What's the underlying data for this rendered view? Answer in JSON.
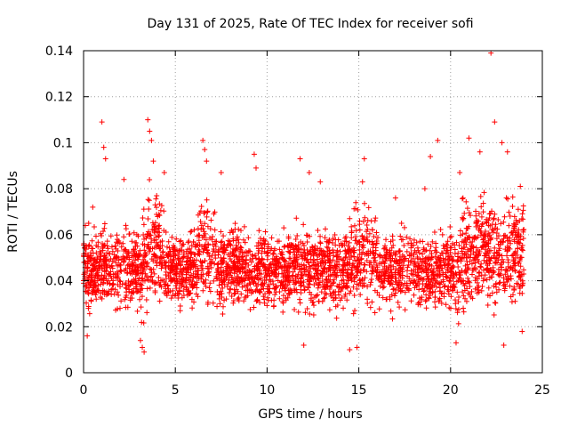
{
  "chart_data": {
    "type": "scatter",
    "title": "Day 131 of 2025, Rate Of TEC Index for receiver sofi",
    "xlabel": "GPS time / hours",
    "ylabel": "ROTI / TECUs",
    "xlim": [
      0,
      25
    ],
    "ylim": [
      0,
      0.14
    ],
    "x_ticks": [
      0,
      5,
      10,
      15,
      20,
      25
    ],
    "x_tick_labels": [
      "0",
      "5",
      "10",
      "15",
      "20",
      "25"
    ],
    "y_ticks": [
      0,
      0.02,
      0.04,
      0.06,
      0.08,
      0.1,
      0.12,
      0.14
    ],
    "y_tick_labels": [
      "0",
      "0.02",
      "0.04",
      "0.06",
      "0.08",
      "0.1",
      "0.12",
      "0.14"
    ],
    "grid": true,
    "marker": "plus",
    "color": "#ff0000",
    "series": [
      {
        "name": "ROTI",
        "summary": {
          "x_range": [
            0,
            24
          ],
          "typical_range": [
            0.02,
            0.065
          ],
          "median": 0.042,
          "max": 0.139
        },
        "points": [
          [
            0.1,
            0.064
          ],
          [
            0.5,
            0.072
          ],
          [
            1.0,
            0.109
          ],
          [
            1.1,
            0.098
          ],
          [
            1.2,
            0.093
          ],
          [
            2.2,
            0.084
          ],
          [
            3.5,
            0.11
          ],
          [
            3.6,
            0.105
          ],
          [
            3.7,
            0.101
          ],
          [
            3.8,
            0.092
          ],
          [
            4.4,
            0.087
          ],
          [
            6.5,
            0.101
          ],
          [
            6.6,
            0.097
          ],
          [
            6.7,
            0.092
          ],
          [
            7.5,
            0.087
          ],
          [
            9.3,
            0.095
          ],
          [
            9.4,
            0.089
          ],
          [
            11.8,
            0.093
          ],
          [
            12.3,
            0.087
          ],
          [
            12.9,
            0.083
          ],
          [
            15.3,
            0.093
          ],
          [
            15.2,
            0.083
          ],
          [
            17.0,
            0.076
          ],
          [
            18.6,
            0.08
          ],
          [
            18.9,
            0.094
          ],
          [
            19.3,
            0.101
          ],
          [
            20.5,
            0.087
          ],
          [
            21.0,
            0.102
          ],
          [
            21.6,
            0.096
          ],
          [
            22.2,
            0.139
          ],
          [
            22.4,
            0.109
          ],
          [
            22.8,
            0.1
          ],
          [
            23.1,
            0.096
          ],
          [
            23.8,
            0.081
          ],
          [
            3.1,
            0.014
          ],
          [
            3.2,
            0.011
          ],
          [
            3.3,
            0.009
          ],
          [
            12.0,
            0.012
          ],
          [
            14.5,
            0.01
          ],
          [
            14.9,
            0.011
          ],
          [
            20.3,
            0.013
          ],
          [
            22.9,
            0.012
          ],
          [
            23.9,
            0.018
          ],
          [
            0.2,
            0.016
          ]
        ]
      }
    ]
  }
}
